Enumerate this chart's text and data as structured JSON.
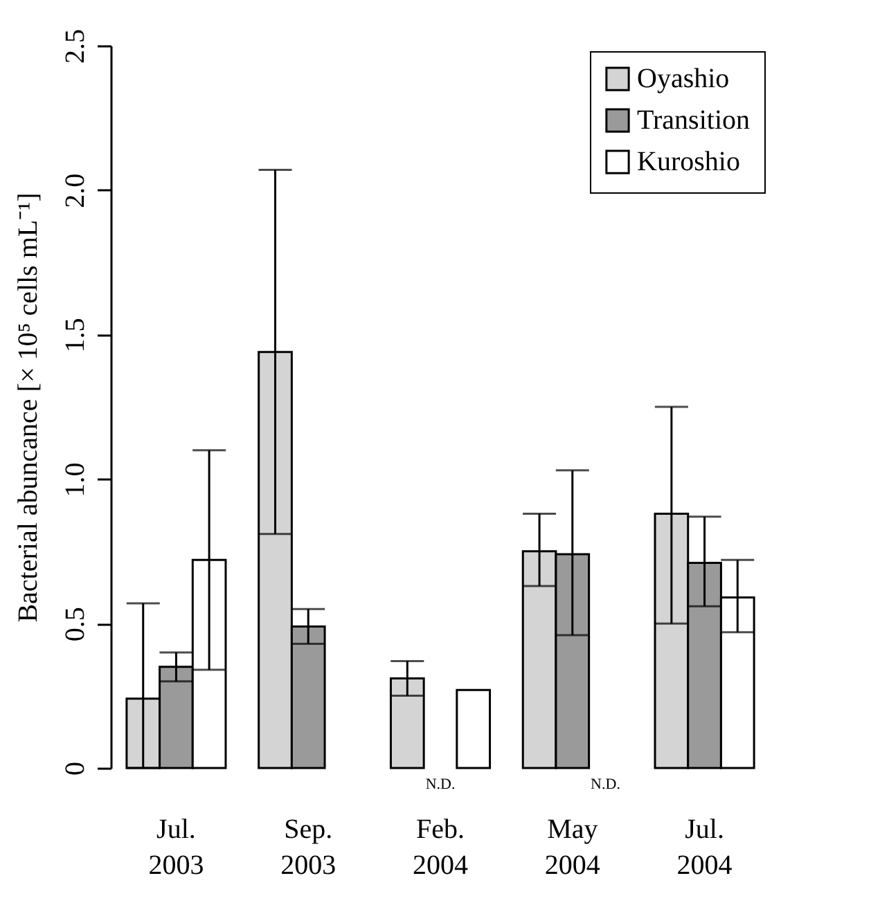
{
  "chart_data": {
    "type": "bar",
    "ylabel": "Bacterial abuncance [× 10⁵ cells mL⁻¹]",
    "categories": [
      "Jul. 2003",
      "Sep. 2003",
      "Feb. 2004",
      "May 2004",
      "Jul. 2004"
    ],
    "series": [
      {
        "name": "Oyashio",
        "color": "#d4d4d4",
        "values": [
          0.24,
          1.44,
          0.31,
          0.75,
          0.88
        ],
        "errors": [
          [
            0,
            0.57
          ],
          [
            0.81,
            2.07
          ],
          [
            0.25,
            0.37
          ],
          [
            0.63,
            0.88
          ],
          [
            0.5,
            1.25
          ]
        ]
      },
      {
        "name": "Transition",
        "color": "#9a9a9a",
        "values": [
          0.35,
          0.49,
          null,
          0.74,
          0.71
        ],
        "errors": [
          [
            0.3,
            0.4
          ],
          [
            0.43,
            0.55
          ],
          null,
          [
            0.46,
            1.03
          ],
          [
            0.56,
            0.87
          ]
        ],
        "value_labels": [
          null,
          null,
          "N.D.",
          null,
          null
        ]
      },
      {
        "name": "Kuroshio",
        "color": "#ffffff",
        "values": [
          0.72,
          null,
          0.27,
          null,
          0.59
        ],
        "errors": [
          [
            0.34,
            1.1
          ],
          null,
          null,
          null,
          [
            0.47,
            0.72
          ]
        ],
        "value_labels": [
          null,
          null,
          null,
          "N.D.",
          null
        ]
      }
    ],
    "ylim": [
      0,
      2.5
    ],
    "yticks": [
      {
        "value": 0,
        "label": "0"
      },
      {
        "value": 0.5,
        "label": "0.5"
      },
      {
        "value": 1,
        "label": "1.0"
      },
      {
        "value": 1.5,
        "label": "1.5"
      },
      {
        "value": 2,
        "label": "2.0"
      },
      {
        "value": 2.5,
        "label": "2.5"
      }
    ],
    "grid": false,
    "legend": "top right"
  }
}
